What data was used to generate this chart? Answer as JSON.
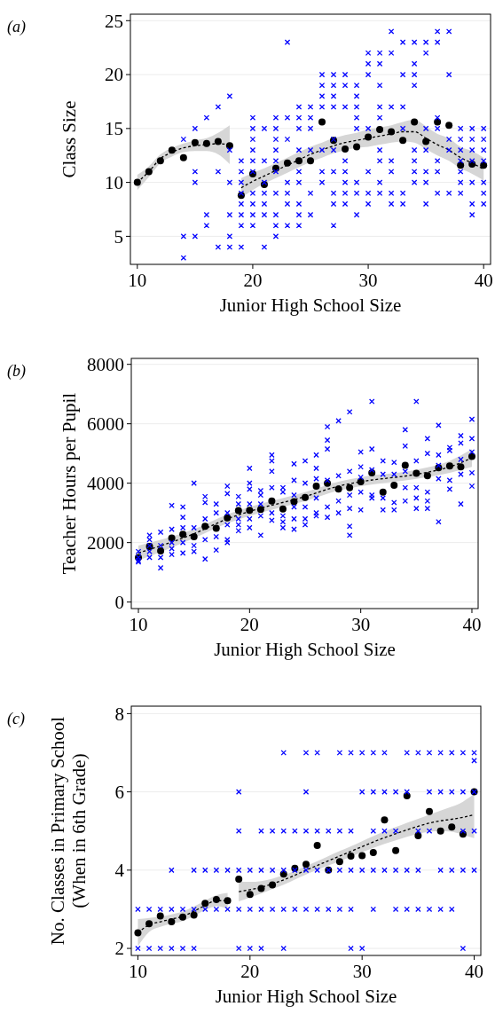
{
  "chart_data": [
    {
      "type": "scatter",
      "title": "(a)",
      "xlabel": "Junior High School Size",
      "ylabel": "Class Size",
      "xlim": [
        9.4,
        40.6
      ],
      "ylim": [
        2.4,
        25.6
      ],
      "xticks": [
        10,
        20,
        30,
        40
      ],
      "yticks": [
        5,
        10,
        15,
        20,
        25
      ],
      "grid": "y",
      "series": [
        {
          "type": "scatter",
          "marker": "cross",
          "color": "#0000ff",
          "x": [
            14,
            14,
            14,
            15,
            15,
            15,
            15,
            16,
            16,
            16,
            17,
            17,
            17,
            18,
            18,
            18,
            18,
            18,
            18,
            19,
            19,
            19,
            19,
            19,
            19,
            19,
            19,
            20,
            20,
            20,
            20,
            20,
            20,
            20,
            20,
            20,
            20,
            21,
            21,
            21,
            21,
            21,
            21,
            21,
            22,
            22,
            22,
            22,
            22,
            22,
            22,
            22,
            22,
            22,
            23,
            23,
            23,
            23,
            23,
            23,
            23,
            24,
            24,
            24,
            24,
            24,
            24,
            24,
            24,
            24,
            25,
            25,
            25,
            25,
            25,
            25,
            26,
            26,
            26,
            26,
            26,
            26,
            26,
            27,
            27,
            27,
            27,
            27,
            27,
            27,
            27,
            27,
            27,
            28,
            28,
            28,
            28,
            28,
            28,
            28,
            28,
            29,
            29,
            29,
            29,
            29,
            29,
            29,
            29,
            30,
            30,
            30,
            30,
            30,
            30,
            30,
            31,
            31,
            31,
            31,
            31,
            31,
            31,
            31,
            31,
            32,
            32,
            32,
            32,
            32,
            32,
            32,
            33,
            33,
            33,
            33,
            33,
            33,
            34,
            34,
            34,
            34,
            34,
            34,
            34,
            34,
            35,
            35,
            35,
            35,
            35,
            35,
            35,
            36,
            36,
            36,
            36,
            36,
            36,
            36,
            37,
            37,
            37,
            37,
            37,
            38,
            38,
            38,
            38,
            38,
            38,
            38,
            39,
            39,
            39,
            39,
            39,
            39,
            39,
            40,
            40,
            40,
            40,
            40,
            40,
            40
          ],
          "values": [
            14,
            5,
            3,
            15,
            11,
            10,
            5,
            16,
            7,
            6,
            17,
            11,
            4,
            18,
            13,
            10,
            7,
            5,
            4,
            12,
            11,
            10,
            9,
            8,
            7,
            6,
            4,
            16,
            15,
            14,
            13,
            12,
            11,
            9,
            8,
            7,
            6,
            15,
            12,
            10,
            9,
            8,
            7,
            4,
            16,
            15,
            14,
            13,
            12,
            11,
            9,
            7,
            6,
            5,
            23,
            16,
            14,
            10,
            9,
            8,
            6,
            17,
            16,
            15,
            13,
            11,
            10,
            8,
            7,
            6,
            17,
            16,
            15,
            13,
            9,
            7,
            20,
            19,
            18,
            17,
            13,
            11,
            10,
            20,
            19,
            18,
            17,
            14,
            13,
            11,
            9,
            8,
            6,
            20,
            19,
            17,
            12,
            11,
            10,
            9,
            8,
            19,
            18,
            17,
            16,
            15,
            10,
            9,
            7,
            22,
            21,
            20,
            15,
            11,
            9,
            8,
            22,
            21,
            19,
            17,
            16,
            13,
            12,
            10,
            9,
            24,
            22,
            17,
            12,
            11,
            9,
            8,
            23,
            20,
            17,
            15,
            9,
            8,
            23,
            21,
            20,
            19,
            13,
            12,
            11,
            10,
            23,
            22,
            15,
            13,
            11,
            10,
            8,
            24,
            23,
            16,
            15,
            12,
            11,
            9,
            24,
            20,
            14,
            13,
            9,
            15,
            14,
            13,
            12,
            11,
            10,
            9,
            15,
            14,
            13,
            12,
            10,
            8,
            7,
            15,
            14,
            13,
            12,
            10,
            9,
            8
          ]
        },
        {
          "type": "line",
          "line_style": "dashed",
          "color": "#000000",
          "x": [
            10,
            11,
            12,
            13,
            14,
            15,
            16,
            17,
            18
          ],
          "values": [
            10,
            11,
            12.2,
            12.8,
            13.2,
            13.4,
            13.5,
            13.6,
            13.5
          ],
          "lower": [
            9.3,
            10.5,
            11.8,
            12.4,
            12.8,
            12.9,
            12.9,
            12.6,
            11.7
          ],
          "upper": [
            10.7,
            11.5,
            12.6,
            13.2,
            13.6,
            13.9,
            14.1,
            14.6,
            15.3
          ]
        },
        {
          "type": "line",
          "line_style": "dashed",
          "color": "#000000",
          "x": [
            19,
            20,
            21,
            22,
            23,
            24,
            25,
            26,
            27,
            28,
            29,
            30,
            31,
            32,
            33,
            34,
            35,
            36,
            37,
            38,
            39,
            40
          ],
          "values": [
            9.5,
            10.1,
            10.6,
            11.1,
            11.6,
            12.1,
            12.6,
            13.0,
            13.4,
            13.7,
            13.9,
            14.1,
            14.3,
            14.5,
            14.7,
            14.7,
            14.1,
            13.5,
            13.0,
            12.3,
            11.8,
            11.2
          ],
          "lower": [
            8.6,
            9.3,
            9.9,
            10.4,
            10.9,
            11.4,
            11.9,
            12.3,
            12.7,
            13.0,
            13.2,
            13.3,
            13.5,
            13.7,
            13.8,
            13.7,
            13.1,
            12.5,
            12.0,
            11.3,
            10.8,
            10.2
          ],
          "upper": [
            10.4,
            10.9,
            11.3,
            11.8,
            12.3,
            12.8,
            13.3,
            13.7,
            14.1,
            14.4,
            14.6,
            14.9,
            15.1,
            15.3,
            15.6,
            15.8,
            15.2,
            14.5,
            14.1,
            13.3,
            12.9,
            12.3
          ]
        },
        {
          "type": "scatter",
          "marker": "circle",
          "color": "#000000",
          "x": [
            10,
            11,
            12,
            13,
            14,
            15,
            16,
            17,
            18,
            19,
            20,
            21,
            22,
            23,
            24,
            25,
            26,
            27,
            28,
            29,
            30,
            31,
            32,
            33,
            34,
            35,
            36,
            37,
            38,
            39,
            40
          ],
          "values": [
            10,
            11,
            12,
            13,
            12.3,
            13.7,
            13.6,
            13.8,
            13.4,
            8.8,
            10.8,
            9.8,
            11.3,
            11.8,
            12,
            12,
            15.6,
            13.9,
            13.1,
            13.3,
            14.2,
            14.9,
            14.7,
            13.9,
            15.6,
            13.8,
            15.6,
            15.3,
            11.6,
            11.7,
            11.6
          ]
        }
      ]
    },
    {
      "type": "scatter",
      "title": "(b)",
      "xlabel": "Junior High School Size",
      "ylabel": "Teacher Hours per Pupil",
      "xlim": [
        9.36,
        40.56
      ],
      "ylim": [
        -220,
        8200
      ],
      "xticks": [
        10,
        20,
        30,
        40
      ],
      "yticks": [
        0,
        2000,
        4000,
        6000,
        8000
      ],
      "grid": "y",
      "series": [
        {
          "type": "scatter",
          "marker": "cross",
          "color": "#0000ff",
          "x": [
            10,
            10,
            10,
            10,
            11,
            11,
            11,
            11,
            11,
            12,
            12,
            12,
            12,
            13,
            13,
            13,
            13,
            13,
            14,
            14,
            14,
            14,
            14,
            15,
            15,
            15,
            15,
            16,
            16,
            16,
            16,
            16,
            17,
            17,
            17,
            17,
            18,
            18,
            18,
            18,
            18,
            18,
            19,
            19,
            19,
            19,
            19,
            20,
            20,
            20,
            20,
            20,
            20,
            21,
            21,
            21,
            21,
            21,
            22,
            22,
            22,
            22,
            22,
            22,
            23,
            23,
            23,
            23,
            23,
            24,
            24,
            24,
            24,
            24,
            24,
            25,
            25,
            25,
            25,
            25,
            26,
            26,
            26,
            26,
            26,
            26,
            27,
            27,
            27,
            27,
            27,
            27,
            28,
            28,
            28,
            28,
            29,
            29,
            29,
            29,
            29,
            29,
            30,
            30,
            30,
            30,
            30,
            31,
            31,
            31,
            31,
            31,
            32,
            32,
            32,
            32,
            33,
            33,
            33,
            33,
            34,
            34,
            34,
            34,
            34,
            35,
            35,
            35,
            35,
            35,
            36,
            36,
            36,
            36,
            36,
            37,
            37,
            37,
            37,
            37,
            38,
            38,
            38,
            38,
            39,
            39,
            39,
            39,
            39,
            40,
            40,
            40,
            40,
            40
          ],
          "values": [
            1700,
            1500,
            1400,
            1350,
            2250,
            2100,
            1900,
            1700,
            1500,
            2350,
            1900,
            1500,
            1150,
            3250,
            2450,
            2000,
            1800,
            1600,
            3200,
            2850,
            2500,
            2000,
            1650,
            4000,
            2500,
            1900,
            1700,
            3550,
            3350,
            2800,
            2100,
            1450,
            3300,
            3000,
            2200,
            1750,
            3900,
            3650,
            3000,
            2600,
            2100,
            2000,
            3550,
            3300,
            2800,
            2600,
            2400,
            4500,
            4000,
            3800,
            3300,
            2800,
            2500,
            3750,
            3600,
            3300,
            2900,
            2250,
            4950,
            4750,
            4400,
            3850,
            3000,
            2750,
            3850,
            3700,
            2900,
            2700,
            2500,
            4650,
            4100,
            3600,
            3200,
            2800,
            2450,
            4750,
            4000,
            3200,
            2800,
            2600,
            4950,
            4500,
            4150,
            3500,
            3000,
            2900,
            5900,
            5450,
            5150,
            4100,
            3200,
            2850,
            6100,
            4250,
            3400,
            3000,
            6400,
            4400,
            3600,
            3150,
            2550,
            2250,
            5050,
            4550,
            4200,
            3700,
            3100,
            6750,
            5150,
            4450,
            3600,
            3500,
            4750,
            4300,
            3500,
            3100,
            4700,
            4300,
            3350,
            3100,
            5800,
            5250,
            4400,
            3850,
            3400,
            6750,
            4750,
            3850,
            3500,
            3150,
            5500,
            5000,
            3700,
            3400,
            3150,
            5950,
            4950,
            4600,
            4150,
            2700,
            5200,
            5100,
            4100,
            3800,
            5600,
            5350,
            4800,
            4300,
            3300,
            6150,
            5500,
            5050,
            4350,
            3900
          ]
        },
        {
          "type": "line",
          "line_style": "dashed",
          "color": "#000000",
          "x": [
            10,
            15,
            18,
            20,
            25,
            28,
            30,
            35,
            38,
            40
          ],
          "values": [
            1650,
            2300,
            2800,
            3050,
            3550,
            3900,
            4050,
            4300,
            4550,
            4850
          ],
          "lower": [
            1400,
            2150,
            2650,
            2900,
            3400,
            3750,
            3900,
            4150,
            4350,
            4550
          ],
          "upper": [
            1900,
            2450,
            2950,
            3200,
            3700,
            4050,
            4200,
            4450,
            4750,
            5150
          ]
        },
        {
          "type": "scatter",
          "marker": "circle",
          "color": "#000000",
          "x": [
            10,
            11,
            12,
            13,
            14,
            15,
            16,
            17,
            18,
            19,
            20,
            21,
            22,
            23,
            24,
            25,
            26,
            27,
            28,
            29,
            30,
            31,
            32,
            33,
            34,
            35,
            36,
            37,
            38,
            39,
            40
          ],
          "values": [
            1500,
            1870,
            1720,
            2150,
            2280,
            2200,
            2550,
            2480,
            2830,
            3080,
            3090,
            3120,
            3400,
            3130,
            3380,
            3520,
            3900,
            4000,
            3800,
            3850,
            4050,
            4350,
            3700,
            3930,
            4600,
            4330,
            4250,
            4520,
            4580,
            4550,
            4900
          ]
        }
      ]
    },
    {
      "type": "scatter",
      "title": "(c)",
      "xlabel": "Junior High School Size",
      "ylabel": "No. Classes in Primary School\n(When in 6th Grade)",
      "xlim": [
        9.41,
        40.59
      ],
      "ylim": [
        1.82,
        8.19
      ],
      "xticks": [
        10,
        20,
        30,
        40
      ],
      "yticks": [
        2,
        4,
        6,
        8
      ],
      "grid": "y",
      "series": [
        {
          "type": "scatter",
          "marker": "cross",
          "color": "#0000ff",
          "x": [
            10,
            10,
            11,
            11,
            12,
            12,
            13,
            13,
            13,
            14,
            14,
            15,
            15,
            15,
            16,
            16,
            17,
            17,
            18,
            18,
            19,
            19,
            19,
            19,
            19,
            20,
            20,
            20,
            21,
            21,
            21,
            21,
            22,
            22,
            22,
            23,
            23,
            23,
            23,
            23,
            24,
            24,
            24,
            25,
            25,
            25,
            25,
            25,
            26,
            26,
            26,
            26,
            27,
            27,
            27,
            28,
            28,
            28,
            28,
            29,
            29,
            29,
            29,
            29,
            30,
            30,
            30,
            30,
            31,
            31,
            31,
            31,
            31,
            32,
            32,
            32,
            32,
            33,
            33,
            33,
            33,
            34,
            34,
            34,
            34,
            35,
            35,
            35,
            35,
            36,
            36,
            36,
            36,
            37,
            37,
            37,
            37,
            38,
            38,
            38,
            38,
            39,
            39,
            39,
            39,
            39,
            40,
            40,
            40,
            40,
            40
          ],
          "values": [
            3,
            2,
            3,
            2,
            3,
            2,
            4,
            3,
            2,
            3,
            2,
            4,
            3,
            2,
            4,
            3,
            4,
            3,
            4,
            3,
            6,
            5,
            4,
            3,
            2,
            4,
            3,
            2,
            5,
            4,
            3,
            2,
            5,
            4,
            3,
            7,
            5,
            4,
            3,
            2,
            5,
            4,
            3,
            7,
            6,
            5,
            4,
            3,
            7,
            5,
            4,
            3,
            5,
            4,
            3,
            7,
            5,
            4,
            3,
            7,
            5,
            4,
            3,
            2,
            7,
            6,
            4,
            2,
            7,
            6,
            5,
            4,
            3,
            7,
            6,
            5,
            4,
            6,
            5,
            4,
            3,
            7,
            6,
            4,
            3,
            7,
            5,
            4,
            3,
            7,
            6,
            5,
            3,
            7,
            6,
            4,
            3,
            7,
            6,
            4,
            3,
            7,
            6,
            5,
            4,
            2,
            7,
            6.8,
            6,
            5,
            4
          ]
        },
        {
          "type": "line",
          "line_style": "dashed",
          "color": "#000000",
          "x": [
            10,
            11,
            12,
            13,
            14,
            15,
            16,
            17,
            18
          ],
          "values": [
            2.4,
            2.6,
            2.68,
            2.75,
            2.82,
            2.95,
            3.1,
            3.22,
            3.22
          ],
          "lower": [
            2.05,
            2.42,
            2.55,
            2.63,
            2.7,
            2.83,
            2.98,
            3.08,
            3.02
          ],
          "upper": [
            2.75,
            2.78,
            2.81,
            2.87,
            2.94,
            3.07,
            3.22,
            3.36,
            3.42
          ]
        },
        {
          "type": "line",
          "line_style": "dashed",
          "color": "#000000",
          "x": [
            19,
            20,
            21,
            22,
            23,
            24,
            25,
            26,
            27,
            28,
            29,
            30,
            31,
            32,
            33,
            34,
            35,
            36,
            37,
            38,
            39,
            40
          ],
          "values": [
            3.45,
            3.5,
            3.56,
            3.65,
            3.75,
            3.87,
            4.0,
            4.12,
            4.24,
            4.36,
            4.48,
            4.6,
            4.72,
            4.83,
            4.93,
            5.03,
            5.12,
            5.2,
            5.26,
            5.3,
            5.35,
            5.42
          ],
          "lower": [
            3.2,
            3.3,
            3.4,
            3.52,
            3.63,
            3.76,
            3.89,
            4.01,
            4.12,
            4.23,
            4.35,
            4.46,
            4.57,
            4.67,
            4.76,
            4.85,
            4.93,
            4.98,
            5.0,
            4.98,
            4.9,
            4.82
          ],
          "upper": [
            3.7,
            3.7,
            3.72,
            3.78,
            3.87,
            3.98,
            4.11,
            4.23,
            4.36,
            4.49,
            4.61,
            4.74,
            4.87,
            4.99,
            5.1,
            5.21,
            5.31,
            5.42,
            5.52,
            5.62,
            5.75,
            5.95
          ]
        },
        {
          "type": "scatter",
          "marker": "circle",
          "color": "#000000",
          "x": [
            10,
            11,
            12,
            13,
            14,
            15,
            16,
            17,
            18,
            19,
            20,
            21,
            22,
            23,
            24,
            25,
            26,
            27,
            28,
            29,
            30,
            31,
            32,
            33,
            34,
            35,
            36,
            37,
            38,
            39,
            40
          ],
          "values": [
            2.4,
            2.63,
            2.83,
            2.68,
            2.8,
            2.85,
            3.15,
            3.25,
            3.22,
            3.77,
            3.38,
            3.53,
            3.62,
            3.9,
            4.05,
            4.15,
            4.63,
            4.0,
            4.22,
            4.36,
            4.37,
            4.45,
            5.28,
            4.5,
            5.9,
            4.88,
            5.5,
            5.0,
            5.1,
            4.92,
            6.0
          ]
        }
      ]
    }
  ]
}
